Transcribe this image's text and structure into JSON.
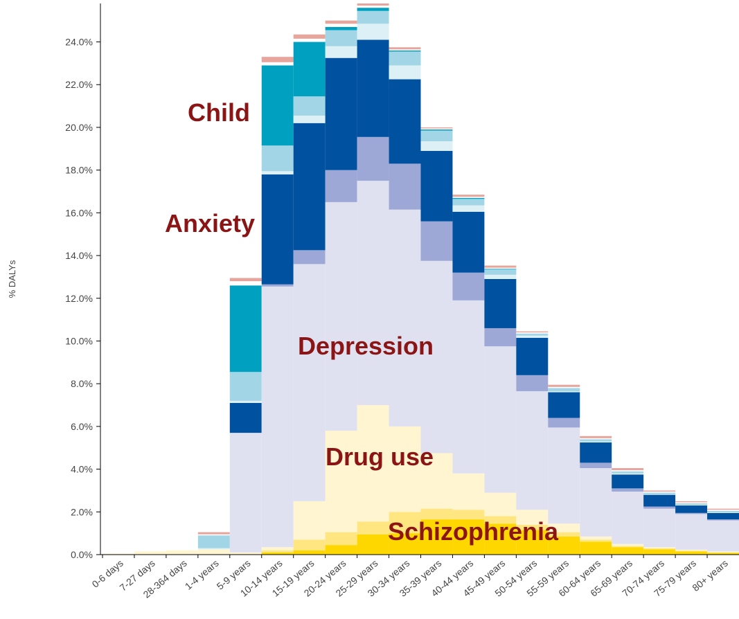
{
  "chart_data": {
    "type": "stacked_bar",
    "y_label": "% DALYs",
    "categories": [
      "0-6 days",
      "7-27 days",
      "28-364 days",
      "1-4 years",
      "5-9 years",
      "10-14 years",
      "15-19 years",
      "20-24 years",
      "25-29 years",
      "30-34 years",
      "35-39 years",
      "40-44 years",
      "45-49 years",
      "50-54 years",
      "55-59 years",
      "60-64 years",
      "65-69 years",
      "70-74 years",
      "75-79 years",
      "80+ years"
    ],
    "series": [
      {
        "color": "#ffd700",
        "values": [
          0,
          0,
          0,
          0,
          0,
          0.1,
          0.2,
          0.45,
          0.95,
          1.0,
          1.65,
          1.65,
          1.45,
          1.15,
          0.85,
          0.6,
          0.35,
          0.25,
          0.15,
          0.08
        ]
      },
      {
        "color": "#ffe680",
        "values": [
          0,
          0,
          0,
          0,
          0,
          0.1,
          0.5,
          0.6,
          0.6,
          1.0,
          0.5,
          0.45,
          0.35,
          0.25,
          0.2,
          0.1,
          0.05,
          0.05,
          0.03,
          0.02
        ]
      },
      {
        "color": "#fff5d1",
        "values": [
          0.05,
          0.15,
          0.2,
          0.25,
          0.1,
          0.15,
          1.8,
          4.75,
          5.45,
          4.0,
          2.6,
          1.7,
          1.1,
          0.7,
          0.4,
          0.15,
          0.1,
          0.05,
          0.05,
          0.05
        ]
      },
      {
        "color": "#dfe1f1",
        "values": [
          0,
          0,
          0,
          0,
          5.6,
          12.2,
          11.1,
          10.7,
          10.5,
          10.15,
          9.0,
          8.1,
          6.85,
          5.55,
          4.5,
          3.2,
          2.45,
          1.8,
          1.67,
          1.45
        ]
      },
      {
        "color": "#9ea8d6",
        "values": [
          0,
          0,
          0,
          0,
          0,
          0.1,
          0.65,
          1.5,
          2.05,
          2.15,
          1.85,
          1.3,
          0.85,
          0.75,
          0.45,
          0.25,
          0.15,
          0.1,
          0.05,
          0.05
        ]
      },
      {
        "color": "#00519f",
        "values": [
          0,
          0,
          0,
          0,
          1.4,
          5.15,
          5.95,
          5.25,
          4.55,
          3.95,
          3.3,
          2.85,
          2.3,
          1.75,
          1.2,
          0.95,
          0.65,
          0.55,
          0.35,
          0.3
        ]
      },
      {
        "color": "#dcf0f5",
        "values": [
          0,
          0,
          0,
          0.05,
          0.1,
          0.15,
          0.35,
          0.55,
          0.75,
          0.65,
          0.45,
          0.3,
          0.2,
          0.1,
          0.05,
          0.05,
          0.05,
          0.03,
          0.03,
          0.03
        ]
      },
      {
        "color": "#a2d5e5",
        "values": [
          0,
          0,
          0,
          0.6,
          1.35,
          1.2,
          0.9,
          0.75,
          0.6,
          0.65,
          0.5,
          0.3,
          0.25,
          0.1,
          0.15,
          0.1,
          0.1,
          0.07,
          0.07,
          0.07
        ]
      },
      {
        "color": "#00a0c1",
        "values": [
          0,
          0,
          0,
          0,
          4.05,
          3.75,
          2.55,
          0.15,
          0.15,
          0.05,
          0.05,
          0.05,
          0.03,
          0,
          0,
          0,
          0,
          0,
          0,
          0
        ]
      },
      {
        "color": "#ffffff",
        "values": [
          0,
          0,
          0,
          0.05,
          0.2,
          0.15,
          0.15,
          0.15,
          0.1,
          0.05,
          0.05,
          0.05,
          0.05,
          0.05,
          0.05,
          0.05,
          0.05,
          0.05,
          0.05,
          0.05
        ]
      },
      {
        "color": "#e6a69e",
        "values": [
          0,
          0,
          0,
          0.1,
          0.15,
          0.25,
          0.2,
          0.15,
          0.1,
          0.1,
          0.05,
          0.1,
          0.1,
          0.05,
          0.1,
          0.1,
          0.1,
          0.05,
          0.05,
          0.05
        ]
      }
    ],
    "ylim": [
      0,
      25.8
    ],
    "yticks": [
      {
        "value": 0,
        "label": "0.0%"
      },
      {
        "value": 2,
        "label": "2.0%"
      },
      {
        "value": 4,
        "label": "4.0%"
      },
      {
        "value": 6,
        "label": "6.0%"
      },
      {
        "value": 8,
        "label": "8.0%"
      },
      {
        "value": 10,
        "label": "10.0%"
      },
      {
        "value": 12,
        "label": "12.0%"
      },
      {
        "value": 14,
        "label": "14.0%"
      },
      {
        "value": 16,
        "label": "16.0%"
      },
      {
        "value": 18,
        "label": "18.0%"
      },
      {
        "value": 20,
        "label": "20.0%"
      },
      {
        "value": 22,
        "label": "22.0%"
      },
      {
        "value": 24,
        "label": "24.0%"
      }
    ],
    "annotations": [
      "Child",
      "Anxiety",
      "Depression",
      "Drug use",
      "Schizophrenia"
    ]
  }
}
